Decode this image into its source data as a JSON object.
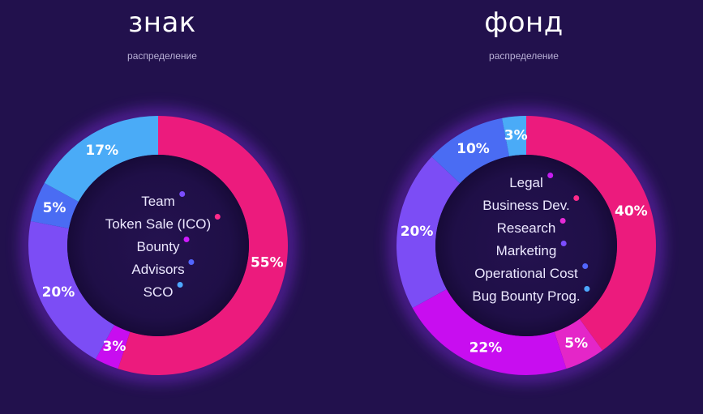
{
  "charts": [
    {
      "title": "знак",
      "subtitle": "распределение",
      "legend": [
        {
          "label": "Team",
          "color": "#7b4dff"
        },
        {
          "label": "Token Sale (ICO)",
          "color": "#ff2a8a"
        },
        {
          "label": "Bounty",
          "color": "#d01bff"
        },
        {
          "label": "Advisors",
          "color": "#5266ff"
        },
        {
          "label": "SCO",
          "color": "#4da8ff"
        }
      ]
    },
    {
      "title": "фонд",
      "subtitle": "распределение",
      "legend": [
        {
          "label": "Legal",
          "color": "#c61cf0"
        },
        {
          "label": "Business Dev.",
          "color": "#ff2a8a"
        },
        {
          "label": "Research",
          "color": "#e62bd6"
        },
        {
          "label": "Marketing",
          "color": "#7b4dff"
        },
        {
          "label": "Operational Cost",
          "color": "#5266ff"
        },
        {
          "label": "Bug Bounty Prog.",
          "color": "#4da8ff"
        }
      ]
    }
  ],
  "chart_data": [
    {
      "type": "pie",
      "title": "знак",
      "subtitle": "распределение",
      "slices": [
        {
          "value": 55,
          "label": "55%",
          "color": "#ec1b7d"
        },
        {
          "value": 3,
          "label": "3%",
          "color": "#c80df0"
        },
        {
          "value": 20,
          "label": "20%",
          "color": "#7c4df5"
        },
        {
          "value": 5,
          "label": "5%",
          "color": "#4a6cf3"
        },
        {
          "value": 17,
          "label": "17%",
          "color": "#4aabf7"
        }
      ],
      "legend": [
        "Team",
        "Token Sale (ICO)",
        "Bounty",
        "Advisors",
        "SCO"
      ]
    },
    {
      "type": "pie",
      "title": "фонд",
      "subtitle": "распределение",
      "slices": [
        {
          "value": 40,
          "label": "40%",
          "color": "#ec1b7d"
        },
        {
          "value": 5,
          "label": "5%",
          "color": "#e426c8"
        },
        {
          "value": 22,
          "label": "22%",
          "color": "#c80df0"
        },
        {
          "value": 20,
          "label": "20%",
          "color": "#7c4df5"
        },
        {
          "value": 10,
          "label": "10%",
          "color": "#4a6cf3"
        },
        {
          "value": 3,
          "label": "3%",
          "color": "#4aabf7"
        }
      ],
      "legend": [
        "Legal",
        "Business Dev.",
        "Research",
        "Marketing",
        "Operational Cost",
        "Bug Bounty Prog."
      ]
    }
  ]
}
